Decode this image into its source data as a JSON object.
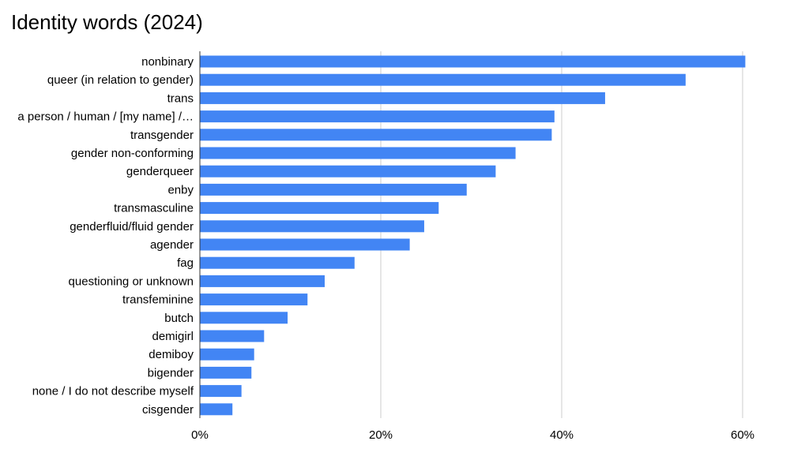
{
  "chart_data": {
    "type": "bar",
    "orientation": "horizontal",
    "title": "Identity words (2024)",
    "xlabel": "",
    "ylabel": "",
    "xlim": [
      0,
      0.6
    ],
    "x_ticks": [
      "0%",
      "20%",
      "40%",
      "60%"
    ],
    "x_tick_values": [
      0,
      0.2,
      0.4,
      0.6
    ],
    "grid": "vertical",
    "legend": "none",
    "bar_color": "#4285f4",
    "categories": [
      "nonbinary",
      "queer (in relation to gender)",
      "trans",
      "a person / human / [my name] /…",
      "transgender",
      "gender non-conforming",
      "genderqueer",
      "enby",
      "transmasculine",
      "genderfluid/fluid gender",
      "agender",
      "fag",
      "questioning or unknown",
      "transfeminine",
      "butch",
      "demigirl",
      "demiboy",
      "bigender",
      "none / I do not describe myself",
      "cisgender"
    ],
    "values": [
      0.603,
      0.537,
      0.448,
      0.392,
      0.389,
      0.349,
      0.327,
      0.295,
      0.264,
      0.248,
      0.232,
      0.171,
      0.138,
      0.119,
      0.097,
      0.071,
      0.06,
      0.057,
      0.046,
      0.036
    ]
  }
}
